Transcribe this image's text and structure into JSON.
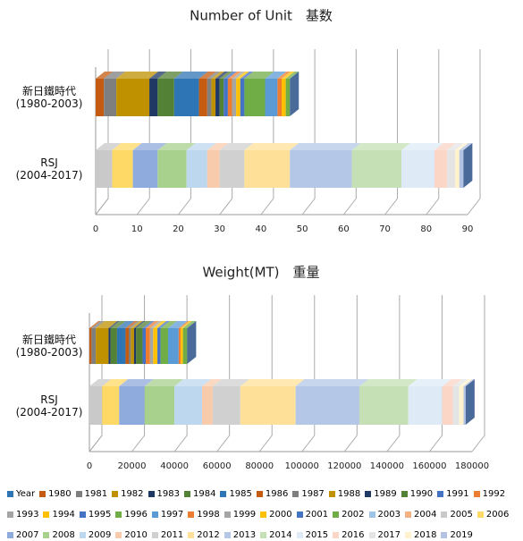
{
  "chart_data": [
    {
      "type": "bar",
      "title": "Number of Unit　基数",
      "categories": [
        "新日鐵時代\n(1980-2003)",
        "RSJ\n(2004-2017)"
      ],
      "xlim": [
        0,
        90
      ],
      "xticks": [
        0,
        10,
        20,
        30,
        40,
        50,
        60,
        70,
        80,
        90
      ],
      "grid": true,
      "series": [
        {
          "name": "Year",
          "color": "#2E75B6",
          "values": [
            null,
            null
          ]
        },
        {
          "name": "1980",
          "color": "#C55A11",
          "values": [
            2,
            null
          ]
        },
        {
          "name": "1981",
          "color": "#7F7F7F",
          "values": [
            3,
            null
          ]
        },
        {
          "name": "1982",
          "color": "#BF9000",
          "values": [
            8,
            null
          ]
        },
        {
          "name": "1983",
          "color": "#203864",
          "values": [
            2,
            null
          ]
        },
        {
          "name": "1984",
          "color": "#538135",
          "values": [
            4,
            null
          ]
        },
        {
          "name": "1985",
          "color": "#2E75B6",
          "values": [
            6,
            null
          ]
        },
        {
          "name": "1986",
          "color": "#C55A11",
          "values": [
            2,
            null
          ]
        },
        {
          "name": "1987",
          "color": "#7F7F7F",
          "values": [
            1,
            null
          ]
        },
        {
          "name": "1988",
          "color": "#BF9000",
          "values": [
            1,
            null
          ]
        },
        {
          "name": "1989",
          "color": "#203864",
          "values": [
            1,
            null
          ]
        },
        {
          "name": "1990",
          "color": "#548235",
          "values": [
            1,
            null
          ]
        },
        {
          "name": "1991",
          "color": "#4472C4",
          "values": [
            1,
            null
          ]
        },
        {
          "name": "1992",
          "color": "#ED7D31",
          "values": [
            1,
            null
          ]
        },
        {
          "name": "1993",
          "color": "#A5A5A5",
          "values": [
            1,
            null
          ]
        },
        {
          "name": "1994",
          "color": "#FFC000",
          "values": [
            1,
            null
          ]
        },
        {
          "name": "1995",
          "color": "#4472C4",
          "values": [
            1,
            null
          ]
        },
        {
          "name": "1996",
          "color": "#70AD47",
          "values": [
            5,
            null
          ]
        },
        {
          "name": "1997",
          "color": "#5B9BD5",
          "values": [
            3,
            null
          ]
        },
        {
          "name": "1998",
          "color": "#ED7D31",
          "values": [
            1,
            null
          ]
        },
        {
          "name": "1999",
          "color": "#A5A5A5",
          "values": [
            0,
            null
          ]
        },
        {
          "name": "2000",
          "color": "#FFC000",
          "values": [
            1,
            null
          ]
        },
        {
          "name": "2001",
          "color": "#4472C4",
          "values": [
            0,
            null
          ]
        },
        {
          "name": "2002",
          "color": "#70AD47",
          "values": [
            1,
            null
          ]
        },
        {
          "name": "2003",
          "color": "#9DC3E6",
          "values": [
            0,
            null
          ]
        },
        {
          "name": "2004",
          "color": "#F4B183",
          "values": [
            null,
            0
          ]
        },
        {
          "name": "2005",
          "color": "#C9C9C9",
          "values": [
            null,
            4
          ]
        },
        {
          "name": "2006",
          "color": "#FFD966",
          "values": [
            null,
            5
          ]
        },
        {
          "name": "2007",
          "color": "#8FAADC",
          "values": [
            null,
            6
          ]
        },
        {
          "name": "2008",
          "color": "#A9D18E",
          "values": [
            null,
            7
          ]
        },
        {
          "name": "2009",
          "color": "#BDD7EE",
          "values": [
            null,
            5
          ]
        },
        {
          "name": "2010",
          "color": "#F8CBAD",
          "values": [
            null,
            3
          ]
        },
        {
          "name": "2011",
          "color": "#D0D0D0",
          "values": [
            null,
            6
          ]
        },
        {
          "name": "2012",
          "color": "#FFE099",
          "values": [
            null,
            11
          ]
        },
        {
          "name": "2013",
          "color": "#B4C7E7",
          "values": [
            null,
            15
          ]
        },
        {
          "name": "2014",
          "color": "#C5E0B4",
          "values": [
            null,
            12
          ]
        },
        {
          "name": "2015",
          "color": "#DEEBF7",
          "values": [
            null,
            8
          ]
        },
        {
          "name": "2016",
          "color": "#FBD5C6",
          "values": [
            null,
            3
          ]
        },
        {
          "name": "2017",
          "color": "#E4E4E4",
          "values": [
            null,
            2
          ]
        },
        {
          "name": "2018",
          "color": "#FFF2CC",
          "values": [
            null,
            1
          ]
        },
        {
          "name": "2019",
          "color": "#B4C2E3",
          "values": [
            null,
            1
          ]
        }
      ]
    },
    {
      "type": "bar",
      "title": "Weight(MT)　重量",
      "categories": [
        "新日鐵時代\n(1980-2003)",
        "RSJ\n(2004-2017)"
      ],
      "xlim": [
        0,
        180000
      ],
      "xticks": [
        0,
        20000,
        40000,
        60000,
        80000,
        100000,
        120000,
        140000,
        160000,
        180000
      ],
      "grid": true,
      "series": [
        {
          "values": [
            null,
            null
          ]
        },
        {
          "values": [
            1000,
            null
          ]
        },
        {
          "values": [
            2000,
            null
          ]
        },
        {
          "values": [
            6000,
            null
          ]
        },
        {
          "values": [
            1000,
            null
          ]
        },
        {
          "values": [
            3000,
            null
          ]
        },
        {
          "values": [
            4000,
            null
          ]
        },
        {
          "values": [
            1500,
            null
          ]
        },
        {
          "values": [
            1000,
            null
          ]
        },
        {
          "values": [
            1500,
            null
          ]
        },
        {
          "values": [
            1000,
            null
          ]
        },
        {
          "values": [
            3000,
            null
          ]
        },
        {
          "values": [
            1500,
            null
          ]
        },
        {
          "values": [
            2000,
            null
          ]
        },
        {
          "values": [
            1500,
            null
          ]
        },
        {
          "values": [
            2000,
            null
          ]
        },
        {
          "values": [
            1500,
            null
          ]
        },
        {
          "values": [
            3500,
            null
          ]
        },
        {
          "values": [
            5000,
            null
          ]
        },
        {
          "values": [
            1000,
            null
          ]
        },
        {
          "values": [
            0,
            null
          ]
        },
        {
          "values": [
            1000,
            null
          ]
        },
        {
          "values": [
            0,
            null
          ]
        },
        {
          "values": [
            2000,
            null
          ]
        },
        {
          "values": [
            0,
            null
          ]
        },
        {
          "values": [
            null,
            0
          ]
        },
        {
          "values": [
            null,
            6000
          ]
        },
        {
          "values": [
            null,
            8000
          ]
        },
        {
          "values": [
            null,
            12000
          ]
        },
        {
          "values": [
            null,
            14000
          ]
        },
        {
          "values": [
            null,
            13000
          ]
        },
        {
          "values": [
            null,
            5000
          ]
        },
        {
          "values": [
            null,
            13000
          ]
        },
        {
          "values": [
            null,
            26000
          ]
        },
        {
          "values": [
            null,
            30000
          ]
        },
        {
          "values": [
            null,
            23000
          ]
        },
        {
          "values": [
            null,
            16000
          ]
        },
        {
          "values": [
            null,
            5000
          ]
        },
        {
          "values": [
            null,
            3000
          ]
        },
        {
          "values": [
            null,
            2000
          ]
        },
        {
          "values": [
            null,
            1000
          ]
        }
      ]
    }
  ]
}
